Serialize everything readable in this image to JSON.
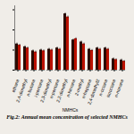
{
  "chart_data": {
    "type": "bar",
    "title": "Fig.2: Annual mean concentration of selected NMHCs",
    "xlabel": "NMHCs",
    "categories": [
      "ethane",
      "2,4-dimethyl",
      "n-butane",
      "i-pentane",
      "2,3-dimethyl",
      "n-pentane",
      "2,2-dimethyl",
      "n-hexane",
      "2-methyl",
      "n-heptane",
      "2,4-dimethyl2",
      "n-octane",
      "isooctane",
      "n-nonane"
    ],
    "series": [
      {
        "color": "#2b0a00",
        "values": [
          6.5,
          5.8,
          4.8,
          5.0,
          5.2,
          5.5,
          14.0,
          7.5,
          7.0,
          5.2,
          5.5,
          5.5,
          2.8,
          2.5
        ],
        "yerr": [
          0.25,
          0.25,
          0.25,
          0.25,
          0.25,
          0.25,
          0.25,
          0.25,
          0.25,
          0.25,
          0.25,
          0.25,
          0.25,
          0.25
        ]
      },
      {
        "color": "#bb1100",
        "values": [
          6.2,
          5.5,
          4.5,
          4.8,
          5.0,
          5.2,
          13.2,
          7.8,
          6.5,
          4.9,
          5.2,
          5.2,
          2.6,
          2.2
        ],
        "yerr": [
          0.25,
          0.25,
          0.25,
          0.25,
          0.25,
          0.25,
          0.25,
          0.25,
          0.25,
          0.25,
          0.25,
          0.25,
          0.25,
          0.25
        ]
      }
    ],
    "ylim": [
      0,
      16
    ],
    "yticks": [
      0,
      5,
      10,
      15
    ],
    "tick_labels": "x"
  }
}
